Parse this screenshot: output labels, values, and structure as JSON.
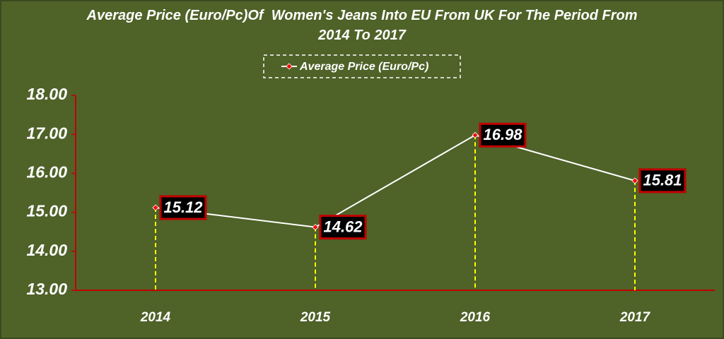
{
  "chart_data": {
    "type": "line",
    "title": "Average Price (Euro/Pc)Of  Women's Jeans Into EU From UK For The Period From 2014 To 2017",
    "categories": [
      "2014",
      "2015",
      "2016",
      "2017"
    ],
    "series": [
      {
        "name": "Average Price (Euro/Pc)",
        "color": "#ffffff",
        "values": [
          15.12,
          14.62,
          16.98,
          15.81
        ]
      }
    ],
    "ylim": [
      13,
      18
    ],
    "yticks": [
      {
        "value": 13,
        "label": "13.00"
      },
      {
        "value": 14,
        "label": "14.00"
      },
      {
        "value": 15,
        "label": "15.00"
      },
      {
        "value": 16,
        "label": "16.00"
      },
      {
        "value": 17,
        "label": "17.00"
      },
      {
        "value": 18,
        "label": "18.00"
      }
    ]
  }
}
